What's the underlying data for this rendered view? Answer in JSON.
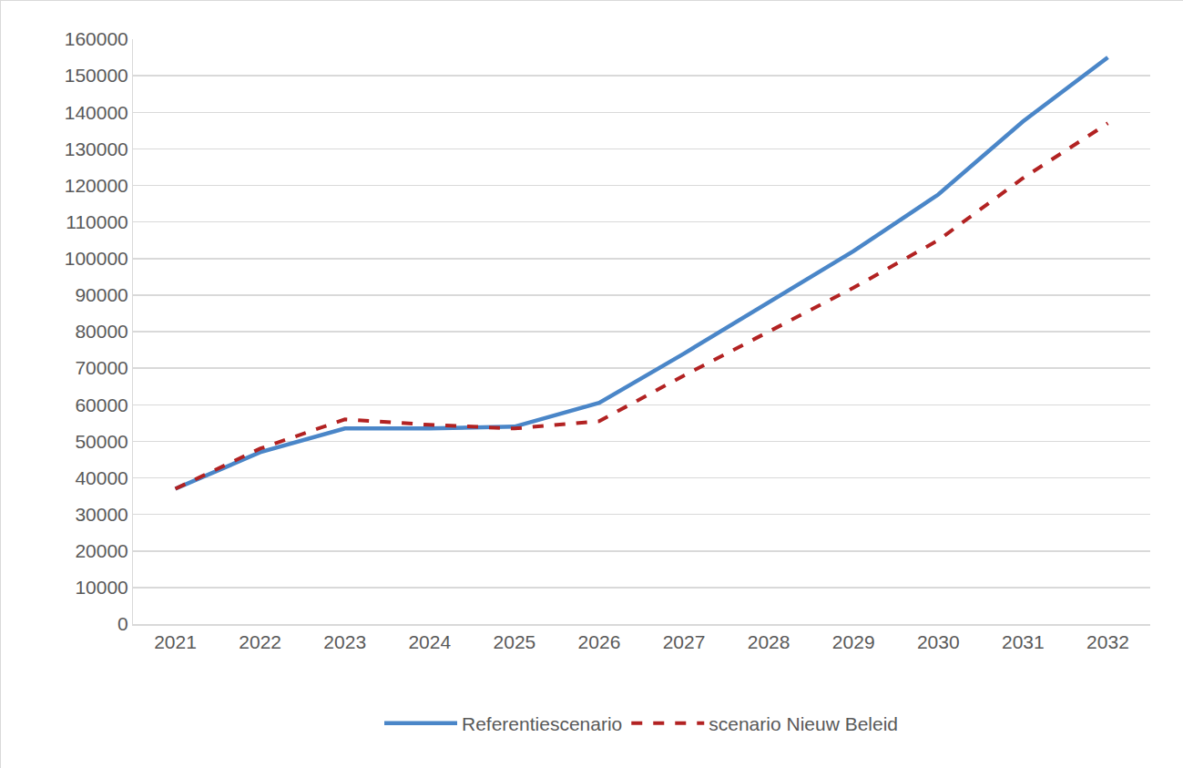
{
  "chart_data": {
    "type": "line",
    "categories": [
      "2021",
      "2022",
      "2023",
      "2024",
      "2025",
      "2026",
      "2027",
      "2028",
      "2029",
      "2030",
      "2031",
      "2032"
    ],
    "series": [
      {
        "name": "Referentiescenario",
        "color": "#4a86c8",
        "line_style": "solid",
        "values": [
          37000,
          47000,
          53500,
          53500,
          54000,
          60500,
          74000,
          88000,
          102000,
          117500,
          137500,
          155000
        ]
      },
      {
        "name": "scenario Nieuw Beleid",
        "color": "#b22222",
        "line_style": "dash",
        "values": [
          37000,
          48000,
          56000,
          54500,
          53500,
          55500,
          68000,
          80000,
          92000,
          105000,
          122000,
          137000
        ]
      }
    ],
    "ylim": [
      0,
      160000
    ],
    "yticks": [
      0,
      10000,
      20000,
      30000,
      40000,
      50000,
      60000,
      70000,
      80000,
      90000,
      100000,
      110000,
      120000,
      130000,
      140000,
      150000,
      160000
    ],
    "grid": true,
    "legend": "bottom"
  }
}
